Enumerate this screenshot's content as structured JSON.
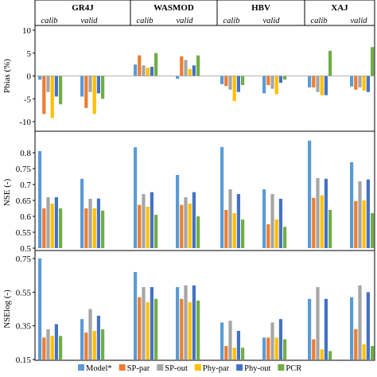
{
  "chart_data": {
    "type": "bar",
    "models": [
      "GR4J",
      "WASMOD",
      "HBV",
      "XAJ"
    ],
    "periods": [
      "calib",
      "valid"
    ],
    "legend_position": "bottom",
    "series": [
      {
        "name": "Model*",
        "color": "#5B9BD5"
      },
      {
        "name": "SP-par",
        "color": "#ED7D31"
      },
      {
        "name": "SP-out",
        "color": "#A5A5A5"
      },
      {
        "name": "Phy-par",
        "color": "#FFC000"
      },
      {
        "name": "Phy-out",
        "color": "#4472C4"
      },
      {
        "name": "PCR",
        "color": "#70AD47"
      }
    ],
    "panels": [
      {
        "ylabel": "Pbias (%)",
        "ylim": [
          -10,
          10
        ],
        "yticks": [
          "10",
          "5",
          "0",
          "-5",
          "-10"
        ],
        "ytick_values": [
          10,
          5,
          0,
          -5,
          -10
        ],
        "values": [
          [
            [
              -0.8,
              -8.3,
              -3.5,
              -9.2,
              -4.5,
              -6.2
            ],
            [
              -4.5,
              -7.0,
              -3.5,
              -8.3,
              -3.8,
              -5.0
            ]
          ],
          [
            [
              2.5,
              4.5,
              2.3,
              1.8,
              2.0,
              5.0
            ],
            [
              -0.6,
              4.3,
              3.5,
              1.5,
              2.3,
              4.5
            ]
          ],
          [
            [
              -1.8,
              -2.2,
              -3.0,
              -5.5,
              -3.5,
              -2.0
            ],
            [
              -3.8,
              -2.0,
              -2.8,
              -4.0,
              -1.5,
              -0.8
            ]
          ],
          [
            [
              -2.5,
              -2.5,
              -3.5,
              -4.2,
              -4.2,
              5.5
            ],
            [
              -2.3,
              -3.0,
              -2.5,
              -3.2,
              -3.5,
              6.3
            ]
          ]
        ]
      },
      {
        "ylabel": "NSE (-)",
        "ylim": [
          0.5,
          0.85
        ],
        "yticks": [
          "0.8",
          "0.75",
          "0.7",
          "0.65",
          "0.6",
          "0.55",
          "0.5"
        ],
        "ytick_values": [
          0.8,
          0.75,
          0.7,
          0.65,
          0.6,
          0.55,
          0.5
        ],
        "values": [
          [
            [
              0.805,
              0.625,
              0.66,
              0.64,
              0.66,
              0.625
            ],
            [
              0.718,
              0.625,
              0.655,
              0.625,
              0.656,
              0.618
            ]
          ],
          [
            [
              0.817,
              0.636,
              0.67,
              0.63,
              0.676,
              0.605
            ],
            [
              0.73,
              0.636,
              0.66,
              0.64,
              0.676,
              0.6
            ]
          ],
          [
            [
              0.818,
              0.62,
              0.685,
              0.61,
              0.67,
              0.59
            ],
            [
              0.685,
              0.575,
              0.67,
              0.59,
              0.655,
              0.567
            ]
          ],
          [
            [
              0.838,
              0.658,
              0.72,
              0.666,
              0.718,
              0.62
            ],
            [
              0.77,
              0.648,
              0.71,
              0.65,
              0.716,
              0.61
            ]
          ]
        ]
      },
      {
        "ylabel": "NSElog (-)",
        "ylim": [
          0.15,
          0.75
        ],
        "yticks": [
          "0.75",
          "0.55",
          "0.35",
          "0.15"
        ],
        "ytick_values": [
          0.75,
          0.55,
          0.35,
          0.15
        ],
        "values": [
          [
            [
              0.75,
              0.28,
              0.33,
              0.29,
              0.36,
              0.29
            ],
            [
              0.39,
              0.31,
              0.45,
              0.32,
              0.41,
              0.33
            ]
          ],
          [
            [
              0.67,
              0.52,
              0.58,
              0.49,
              0.58,
              0.51
            ],
            [
              0.58,
              0.51,
              0.59,
              0.49,
              0.59,
              0.5
            ]
          ],
          [
            [
              0.37,
              0.23,
              0.38,
              0.22,
              0.32,
              0.22
            ],
            [
              0.28,
              0.28,
              0.37,
              0.28,
              0.39,
              0.27
            ]
          ],
          [
            [
              0.51,
              0.27,
              0.58,
              0.21,
              0.51,
              0.2
            ],
            [
              0.52,
              0.33,
              0.59,
              0.24,
              0.55,
              0.23
            ]
          ]
        ]
      }
    ]
  }
}
